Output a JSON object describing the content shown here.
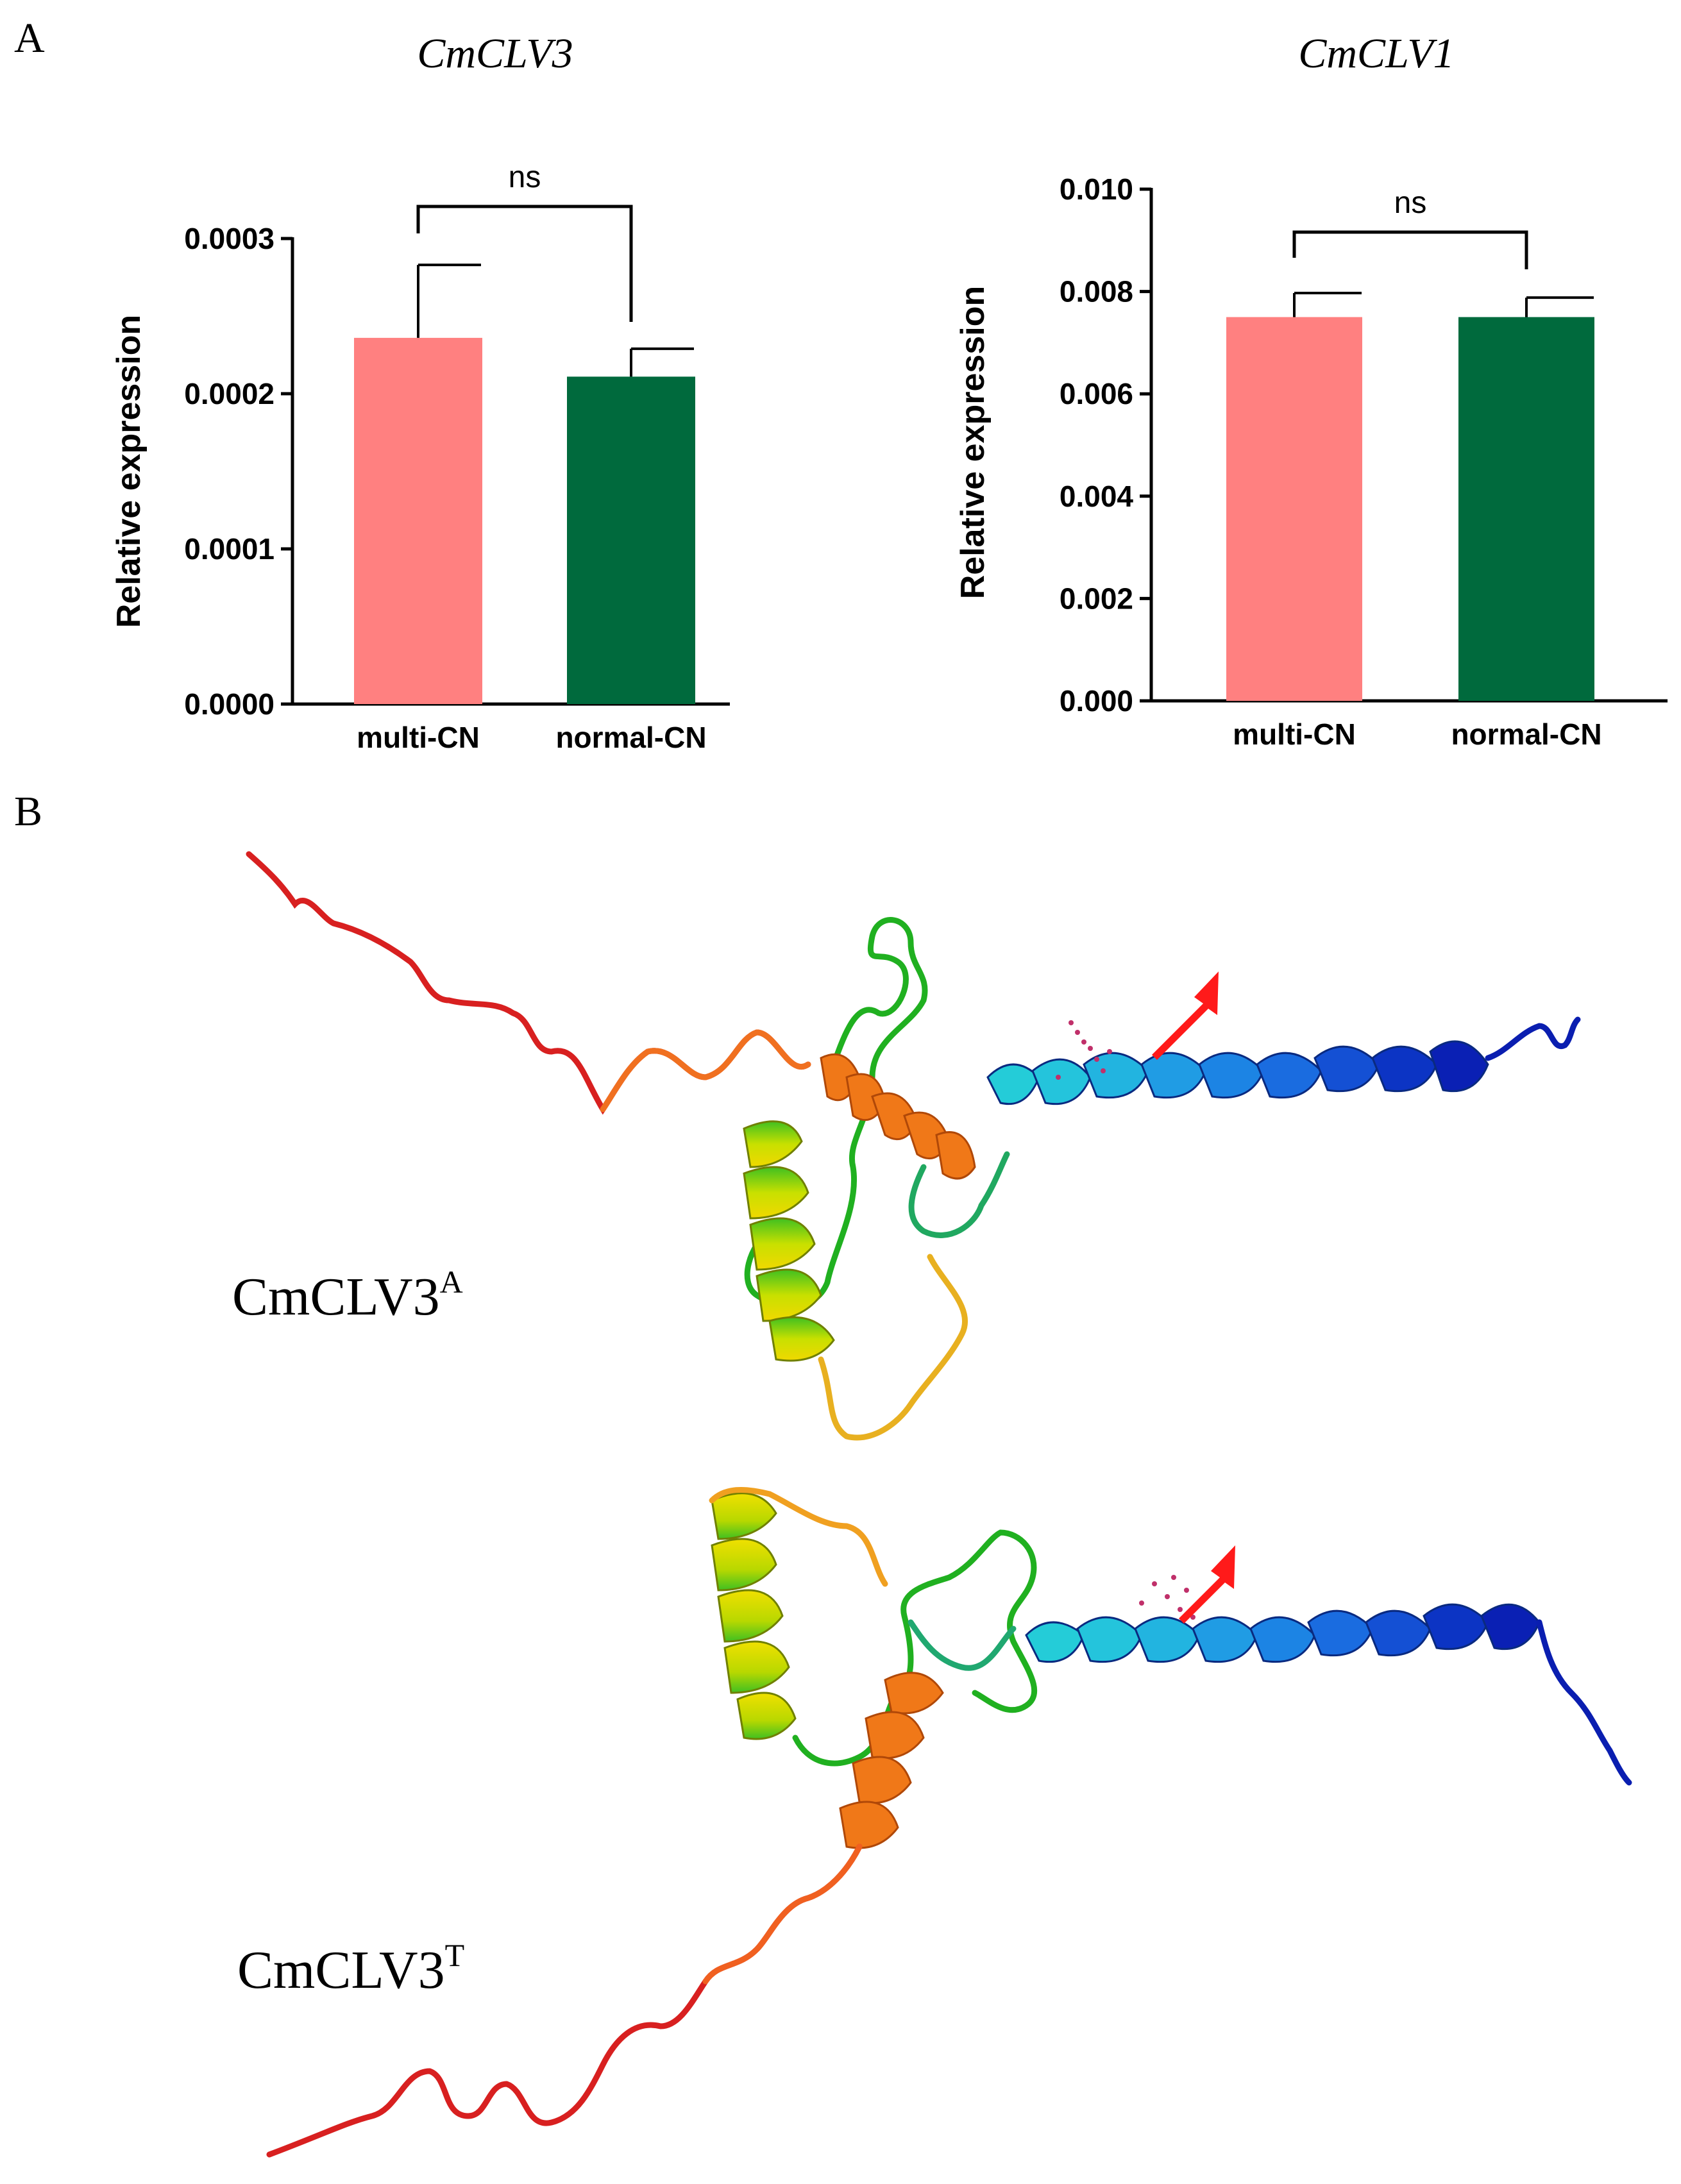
{
  "panels": {
    "a": "A",
    "b": "B"
  },
  "chart_data": [
    {
      "type": "bar",
      "title": "CmCLV3",
      "ylabel": "Relative expression",
      "xlabel": "",
      "categories": [
        "multi-CN",
        "normal-CN"
      ],
      "values": [
        0.000236,
        0.000211
      ],
      "errors": [
        4.7e-05,
        1.8e-05
      ],
      "colors": [
        "#FF8080",
        "#006A3D"
      ],
      "ylim": [
        0,
        0.0003
      ],
      "yticks": [
        "0.0000",
        "0.0001",
        "0.0002",
        "0.0003"
      ],
      "significance": "ns"
    },
    {
      "type": "bar",
      "title": "CmCLV1",
      "ylabel": "Relative expression",
      "xlabel": "",
      "categories": [
        "multi-CN",
        "normal-CN"
      ],
      "values": [
        0.0075,
        0.0075
      ],
      "errors": [
        0.00047,
        0.00038
      ],
      "colors": [
        "#FF8080",
        "#006A3D"
      ],
      "ylim": [
        0,
        0.01
      ],
      "yticks": [
        "0.000",
        "0.002",
        "0.004",
        "0.006",
        "0.008",
        "0.010"
      ],
      "significance": "ns"
    }
  ],
  "structures": [
    {
      "name": "CmCLV3",
      "superscript": "A"
    },
    {
      "name": "CmCLV3",
      "superscript": "T"
    }
  ],
  "colors": {
    "arrow": "#FF1A1A"
  }
}
